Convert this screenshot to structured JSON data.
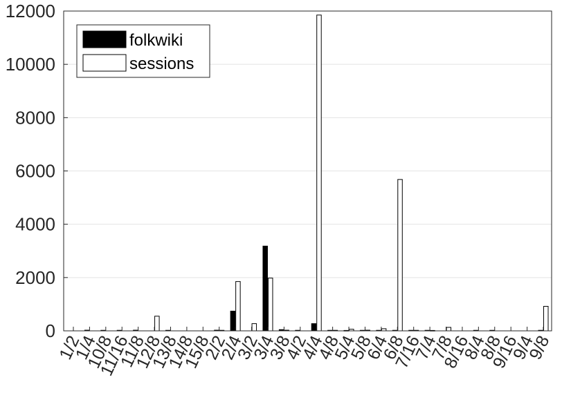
{
  "chart_data": {
    "type": "bar",
    "categories": [
      "1/2",
      "1/4",
      "10/8",
      "11/16",
      "11/8",
      "12/8",
      "13/8",
      "14/8",
      "15/8",
      "2/2",
      "2/4",
      "3/2",
      "3/4",
      "3/8",
      "4/2",
      "4/4",
      "4/8",
      "5/4",
      "5/8",
      "6/4",
      "6/8",
      "7/16",
      "7/4",
      "7/8",
      "8/16",
      "8/4",
      "8/8",
      "9/16",
      "9/4",
      "9/8"
    ],
    "series": [
      {
        "name": "folkwiki",
        "color": "#000000",
        "values": [
          0,
          25,
          20,
          20,
          25,
          0,
          20,
          0,
          0,
          25,
          740,
          0,
          3180,
          45,
          20,
          270,
          20,
          15,
          20,
          20,
          20,
          20,
          20,
          0,
          0,
          20,
          20,
          0,
          0,
          20
        ]
      },
      {
        "name": "sessions",
        "color": "#ffffff",
        "values": [
          0,
          0,
          0,
          0,
          0,
          550,
          0,
          0,
          0,
          20,
          1850,
          270,
          1980,
          25,
          0,
          11850,
          20,
          60,
          25,
          80,
          5680,
          20,
          15,
          130,
          0,
          0,
          0,
          0,
          0,
          920
        ]
      }
    ],
    "title": "",
    "xlabel": "",
    "ylabel": "",
    "ylim": [
      0,
      12000
    ],
    "yticks": [
      0,
      2000,
      4000,
      6000,
      8000,
      10000,
      12000
    ],
    "grid": "y",
    "legend_position": "top-left"
  }
}
